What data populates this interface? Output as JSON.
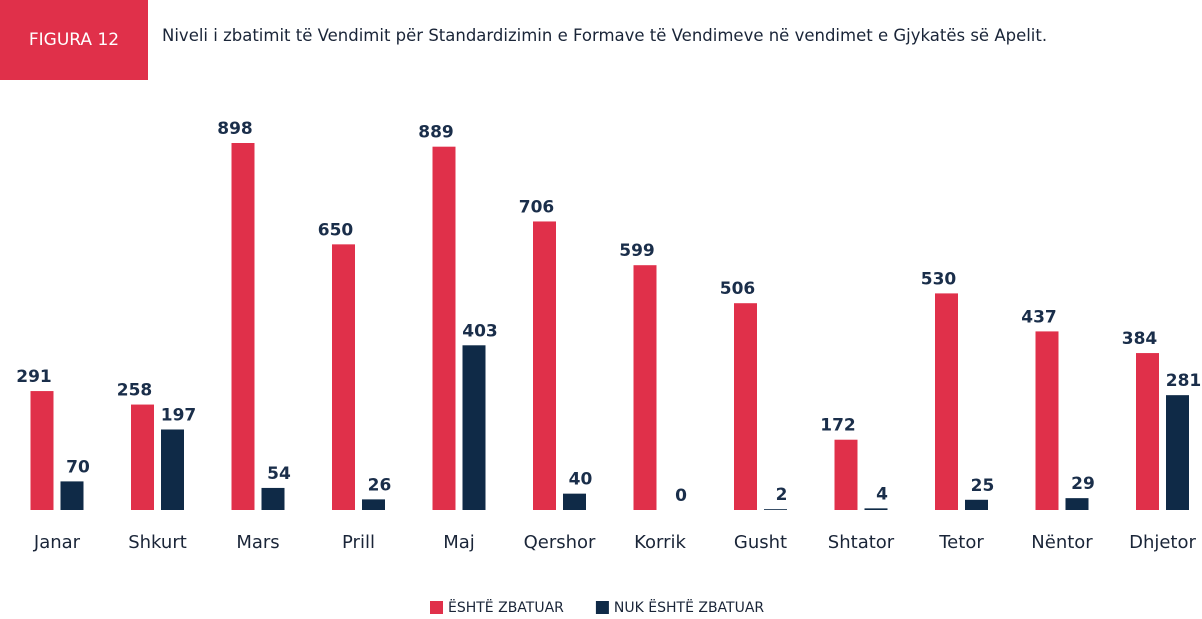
{
  "chart_data": {
    "type": "bar",
    "figure_label": "FIGURA 12",
    "title": "Niveli i zbatimit të Vendimit për Standardizimin e Formave të Vendimeve në vendimet e Gjykatës së Apelit.",
    "categories": [
      "Janar",
      "Shkurt",
      "Mars",
      "Prill",
      "Maj",
      "Qershor",
      "Korrik",
      "Gusht",
      "Shtator",
      "Tetor",
      "Nëntor",
      "Dhjetor"
    ],
    "series": [
      {
        "name": "ËSHTË ZBATUAR",
        "color": "#e0304a",
        "values": [
          291,
          258,
          898,
          650,
          889,
          706,
          599,
          506,
          172,
          530,
          437,
          384
        ]
      },
      {
        "name": "NUK ËSHTË ZBATUAR",
        "color": "#0f2a47",
        "values": [
          70,
          197,
          54,
          26,
          403,
          40,
          0,
          2,
          4,
          25,
          29,
          281
        ]
      }
    ],
    "legend": "bottom"
  }
}
